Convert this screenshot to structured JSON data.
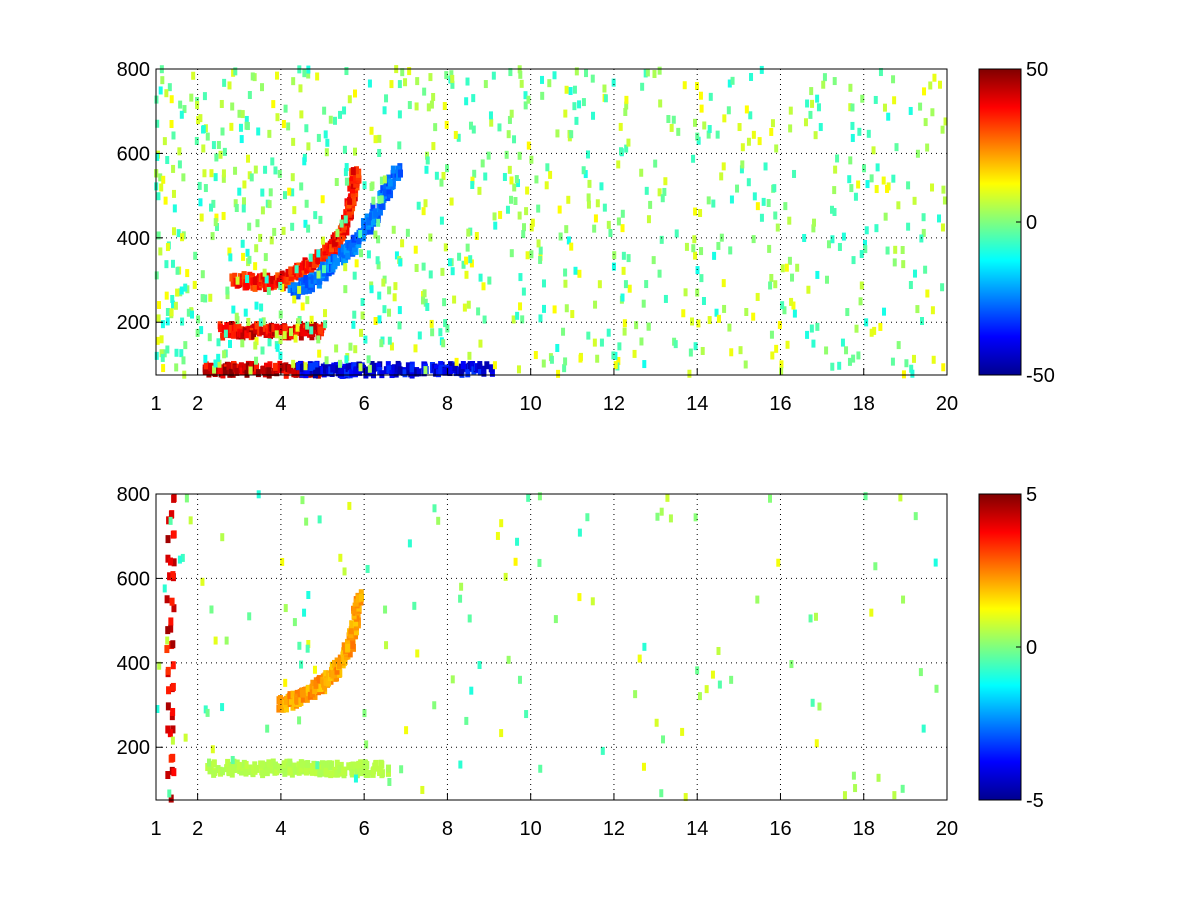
{
  "chart_data": [
    {
      "type": "heatmap",
      "title": "",
      "xlabel": "",
      "ylabel": "",
      "xlim": [
        1,
        20
      ],
      "ylim": [
        75,
        800
      ],
      "xticks": [
        1,
        2,
        4,
        6,
        8,
        10,
        12,
        14,
        16,
        18,
        20
      ],
      "yticks": [
        200,
        400,
        600,
        800
      ],
      "grid": true,
      "colormap": "jet",
      "colorbar": {
        "min": -50,
        "max": 50,
        "ticks": [
          -50,
          0,
          50
        ]
      },
      "features": [
        {
          "label": "ridge",
          "x": [
            2.9,
            3.5,
            4.0,
            4.4,
            4.8,
            5.2,
            5.5,
            5.7,
            5.8
          ],
          "y": [
            300,
            295,
            295,
            320,
            340,
            370,
            420,
            480,
            560
          ],
          "value": 40
        },
        {
          "label": "band",
          "x": [
            2.6,
            3.4,
            4.2,
            5.0
          ],
          "y": [
            180,
            180,
            180,
            180
          ],
          "value": 45
        },
        {
          "label": "band",
          "x": [
            2.2,
            3.0,
            4.0,
            5.0
          ],
          "y": [
            85,
            85,
            85,
            85
          ],
          "value": 48
        },
        {
          "label": "trough",
          "x": [
            4.3,
            4.8,
            5.3,
            5.8,
            6.3,
            6.8
          ],
          "y": [
            270,
            300,
            340,
            390,
            460,
            560
          ],
          "value": -30
        },
        {
          "label": "trough",
          "x": [
            4.5,
            5.2,
            6.0,
            7.0,
            8.0,
            9.0
          ],
          "y": [
            85,
            85,
            85,
            85,
            85,
            85
          ],
          "value": -45
        }
      ]
    },
    {
      "type": "heatmap",
      "title": "",
      "xlabel": "",
      "ylabel": "",
      "xlim": [
        1,
        20
      ],
      "ylim": [
        75,
        800
      ],
      "xticks": [
        1,
        2,
        4,
        6,
        8,
        10,
        12,
        14,
        16,
        18,
        20
      ],
      "yticks": [
        200,
        400,
        600,
        800
      ],
      "grid": true,
      "colormap": "jet",
      "colorbar": {
        "min": -5,
        "max": 5,
        "ticks": [
          -5,
          0,
          5
        ]
      },
      "features": [
        {
          "label": "ridge",
          "x": [
            4.0,
            4.5,
            5.0,
            5.4,
            5.7,
            5.9
          ],
          "y": [
            300,
            320,
            350,
            390,
            450,
            560
          ],
          "value": 2.5
        },
        {
          "label": "band",
          "x": [
            2.3,
            3.5,
            4.5,
            5.5,
            6.5
          ],
          "y": [
            150,
            150,
            150,
            150,
            150
          ],
          "value": 0.6
        },
        {
          "label": "line",
          "x": [
            1.35,
            1.35
          ],
          "y": [
            80,
            800
          ],
          "value": 4.5
        }
      ]
    }
  ]
}
